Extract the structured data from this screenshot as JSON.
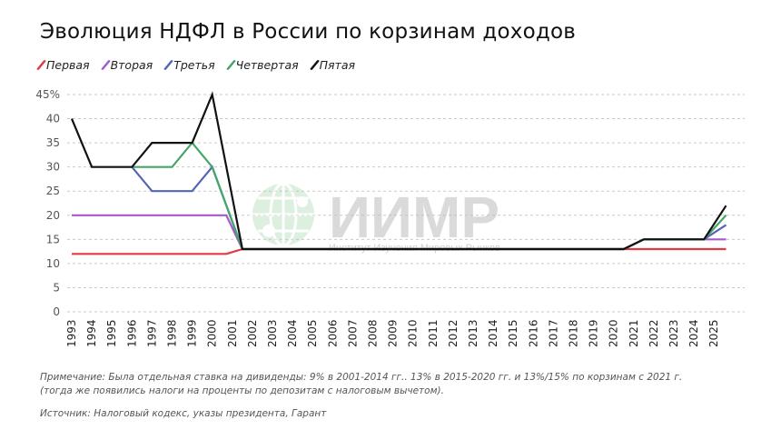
{
  "title": "Эволюция НДФЛ в России по корзинам доходов",
  "legend": [
    {
      "label": "Первая",
      "color": "#e03a45"
    },
    {
      "label": "Вторая",
      "color": "#a45ac8"
    },
    {
      "label": "Третья",
      "color": "#5565b5"
    },
    {
      "label": "Четвертая",
      "color": "#45a56a"
    },
    {
      "label": "Пятая",
      "color": "#111111"
    }
  ],
  "watermark": {
    "main": "ИИМР",
    "sub": "Институт Изучения Мировых Рынков"
  },
  "note_line1": "Примечание: Была отдельная ставка на дивиденды: 9% в 2001-2014 гг.. 13% в 2015-2020 гг. и 13%/15% по корзинам с 2021 г.",
  "note_line2": "(тогда же появились налоги на проценты по депозитам с налоговым вычетом).",
  "source": "Источник: Налоговый кодекс, указы президента, Гарант",
  "chart_data": {
    "type": "line",
    "title": "Эволюция НДФЛ в России по корзинам доходов",
    "xlabel": "",
    "ylabel": "",
    "ylim": [
      0,
      45
    ],
    "yticks": [
      "0",
      "5",
      "10",
      "15",
      "20",
      "25",
      "30",
      "35",
      "40",
      "45%"
    ],
    "grid": true,
    "legend_position": "top-left",
    "categories": [
      "1993",
      "1994",
      "1995",
      "1996",
      "1997",
      "1998",
      "1999",
      "2000",
      "2001",
      "2002",
      "2003",
      "2004",
      "2005",
      "2006",
      "2007",
      "2008",
      "2009",
      "2010",
      "2011",
      "2012",
      "2013",
      "2014",
      "2015",
      "2016",
      "2017",
      "2018",
      "2019",
      "2020",
      "2021",
      "2022",
      "2023",
      "2024",
      "2025"
    ],
    "series": [
      {
        "name": "Первая",
        "color": "#e03a45",
        "points": [
          [
            1993,
            12
          ],
          [
            2000.7,
            12
          ],
          [
            2001.5,
            13
          ],
          [
            2020.5,
            13
          ],
          [
            2025.6,
            13
          ]
        ]
      },
      {
        "name": "Вторая",
        "color": "#a45ac8",
        "points": [
          [
            1993,
            20
          ],
          [
            2000.7,
            20
          ],
          [
            2001.5,
            13
          ],
          [
            2020.5,
            13
          ],
          [
            2021.5,
            15
          ],
          [
            2024.5,
            15
          ],
          [
            2025.6,
            15
          ]
        ]
      },
      {
        "name": "Третья",
        "color": "#5565b5",
        "points": [
          [
            1996,
            30
          ],
          [
            1997,
            25
          ],
          [
            1999,
            25
          ],
          [
            2000,
            30
          ],
          [
            2001.5,
            13
          ],
          [
            2020.5,
            13
          ],
          [
            2021.5,
            15
          ],
          [
            2024.5,
            15
          ],
          [
            2025.6,
            18
          ]
        ]
      },
      {
        "name": "Четвертая",
        "color": "#45a56a",
        "points": [
          [
            1996,
            30
          ],
          [
            1998,
            30
          ],
          [
            1999,
            35
          ],
          [
            2000,
            30
          ],
          [
            2001.5,
            13
          ],
          [
            2020.5,
            13
          ],
          [
            2021.5,
            15
          ],
          [
            2024.5,
            15
          ],
          [
            2025.6,
            20
          ]
        ]
      },
      {
        "name": "Пятая",
        "color": "#111111",
        "points": [
          [
            1993,
            40
          ],
          [
            1994,
            30
          ],
          [
            1996,
            30
          ],
          [
            1997,
            35
          ],
          [
            1999,
            35
          ],
          [
            2000,
            45
          ],
          [
            2001.5,
            13
          ],
          [
            2020.5,
            13
          ],
          [
            2021.5,
            15
          ],
          [
            2024.5,
            15
          ],
          [
            2025.6,
            22
          ]
        ]
      }
    ]
  }
}
